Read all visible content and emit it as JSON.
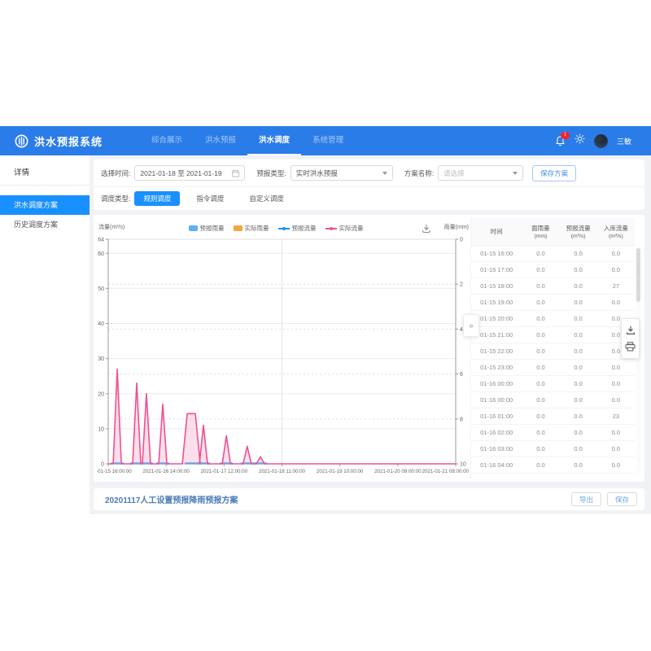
{
  "colors": {
    "navbar": "#2a7ce8",
    "accent": "#1890ff",
    "badge_red": "#f5222d",
    "actual_flow_pink": "#f0508f",
    "forecast_rain_blue": "#5db1f0",
    "actual_rain_orange": "#f7a543",
    "forecast_flow_blue": "#1890ff"
  },
  "navbar": {
    "brand": "洪水预报系统",
    "items": [
      {
        "label": "综合展示",
        "active": false
      },
      {
        "label": "洪水预报",
        "active": false
      },
      {
        "label": "洪水调度",
        "active": true
      },
      {
        "label": "系统管理",
        "active": false
      }
    ],
    "badge": "1",
    "username": "三敏"
  },
  "sidebar": {
    "title": "详情",
    "items": [
      {
        "label": "洪水调度方案",
        "active": true
      },
      {
        "label": "历史调度方案",
        "active": false
      }
    ]
  },
  "filters": {
    "time_label": "选择时间:",
    "time_value": "2021-01-18 至 2021-01-19",
    "type_label": "预报类型:",
    "type_value": "实时洪水预报",
    "plan_label": "方案名称:",
    "plan_placeholder": "请选择",
    "save_button": "保存方案"
  },
  "dispatch_tabs": {
    "label": "调度类型:",
    "tabs": [
      {
        "label": "规则调度",
        "active": true
      },
      {
        "label": "指令调度",
        "active": false
      },
      {
        "label": "自定义调度",
        "active": false
      }
    ]
  },
  "chart_data": {
    "type": "line",
    "left_axis": {
      "label": "流量(m³/s)",
      "min": 0,
      "max": 64,
      "ticks": [
        0,
        10,
        20,
        30,
        40,
        50,
        60,
        64
      ]
    },
    "right_axis": {
      "label": "雨量(mm)",
      "min": 0,
      "max": 10,
      "ticks": [
        0,
        2,
        4,
        6,
        8,
        10
      ],
      "inverted": true,
      "dashed_gridlines": [
        2,
        4,
        6,
        8
      ]
    },
    "x_ticks": [
      "2021-01-15 16:00:00",
      "2021-01-16 14:00:00",
      "2021-01-17 12:00:00",
      "2021-01-18 11:00:00",
      "2021-01-19 10:00:00",
      "2021-01-20 09:00:00",
      "2021-01-21 08:00:00"
    ],
    "legend": [
      {
        "label": "预报雨量",
        "color": "#5db1f0",
        "type": "rect"
      },
      {
        "label": "实际雨量",
        "color": "#f7a543",
        "type": "rect"
      },
      {
        "label": "预报流量",
        "color": "#1890ff",
        "type": "line"
      },
      {
        "label": "实际流量",
        "color": "#f0508f",
        "type": "line"
      }
    ],
    "series": [
      {
        "name": "预报流量",
        "color": "#5db1f0",
        "baseline": 0
      },
      {
        "name": "实际流量",
        "color": "#f0508f",
        "baseline": 0,
        "spikes": [
          {
            "x": 0.026,
            "peak": 27
          },
          {
            "x": 0.082,
            "peak": 23
          },
          {
            "x": 0.11,
            "peak": 20
          },
          {
            "x": 0.157,
            "peak": 17
          },
          {
            "x": 0.239,
            "peak": 14.3,
            "wide": true
          },
          {
            "x": 0.274,
            "peak": 11
          },
          {
            "x": 0.34,
            "peak": 8
          },
          {
            "x": 0.4,
            "peak": 5
          },
          {
            "x": 0.438,
            "peak": 2
          }
        ]
      }
    ],
    "grid": {
      "vertical_line_tick_index": 3
    }
  },
  "table": {
    "headers": [
      {
        "name": "时间",
        "unit": ""
      },
      {
        "name": "面雨量",
        "unit": "(mm)"
      },
      {
        "name": "预报流量",
        "unit": "(m³/s)"
      },
      {
        "name": "入库流量",
        "unit": "(m³/s)"
      }
    ],
    "rows": [
      [
        "01-15 16:00",
        "0.0",
        "0.0",
        "0.0"
      ],
      [
        "01-15 17:00",
        "0.0",
        "0.0",
        "0.0"
      ],
      [
        "01-15 18:00",
        "0.0",
        "0.0",
        "27"
      ],
      [
        "01-15 19:00",
        "0.0",
        "0.0",
        "0.0"
      ],
      [
        "01-15 20:00",
        "0.0",
        "0.0",
        "0.0"
      ],
      [
        "01-15 21:00",
        "0.0",
        "0.0",
        "0.0"
      ],
      [
        "01-15 22:00",
        "0.0",
        "0.0",
        "0.0"
      ],
      [
        "01-15 23:00",
        "0.0",
        "0.0",
        "0.0"
      ],
      [
        "01-16 00:00",
        "0.0",
        "0.0",
        "0.0"
      ],
      [
        "01-16 00:00",
        "0.0",
        "0.0",
        "0.0"
      ],
      [
        "01-16 01:00",
        "0.0",
        "0.0",
        "23"
      ],
      [
        "01-16 02:00",
        "0.0",
        "0.0",
        "0.0"
      ],
      [
        "01-16 03:00",
        "0.0",
        "0.0",
        "0.0"
      ],
      [
        "01-16 04:00",
        "0.0",
        "0.0",
        "0.0"
      ]
    ],
    "collapse_button": "»"
  },
  "footer": {
    "title": "20201117人工设置预报降雨预报方案",
    "export_button": "导出",
    "save_button": "保存"
  }
}
